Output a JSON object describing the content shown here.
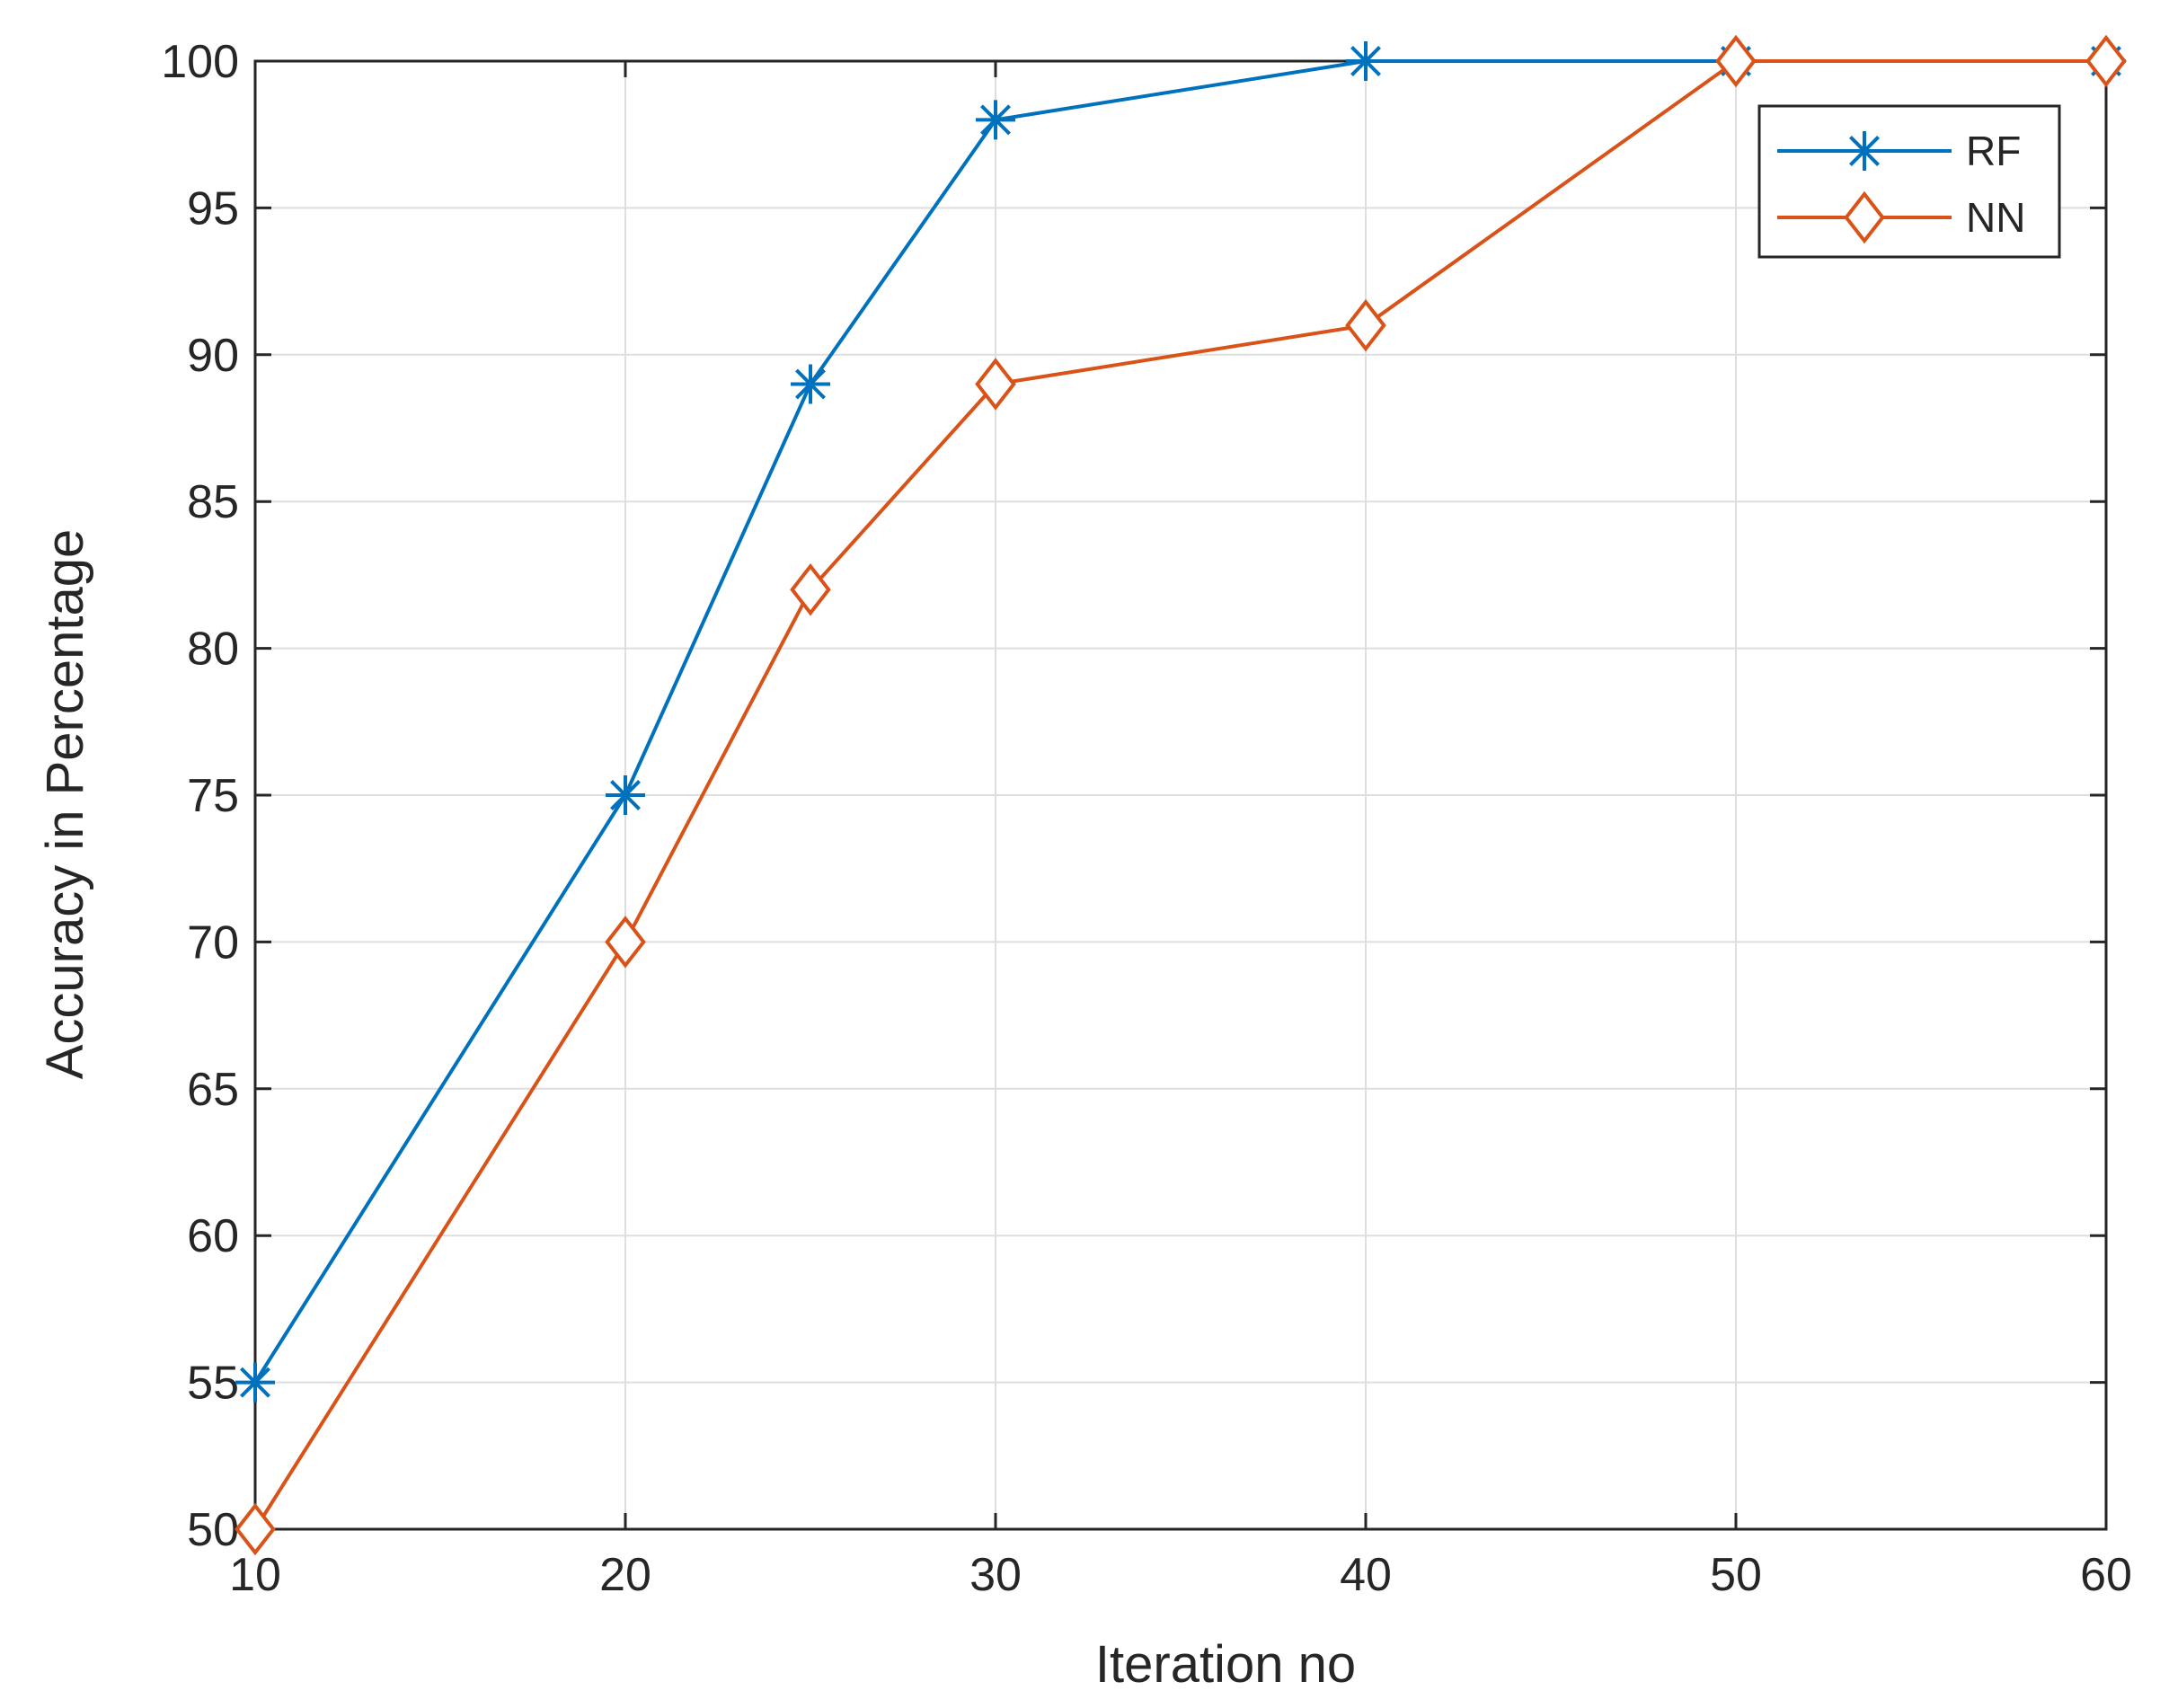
{
  "chart_data": {
    "type": "line",
    "title": "",
    "xlabel": "Iteration no",
    "ylabel": "Accuracy in Percentage",
    "xlim": [
      10,
      60
    ],
    "ylim": [
      50,
      100
    ],
    "x_ticks": [
      10,
      20,
      30,
      40,
      50,
      60
    ],
    "y_ticks": [
      50,
      55,
      60,
      65,
      70,
      75,
      80,
      85,
      90,
      95,
      100
    ],
    "x_tick_labels": [
      "10",
      "20",
      "30",
      "40",
      "50",
      "60"
    ],
    "y_tick_labels": [
      "50",
      "55",
      "60",
      "65",
      "70",
      "75",
      "80",
      "85",
      "90",
      "95",
      "100"
    ],
    "grid": true,
    "legend_position": "top-right",
    "x": [
      10,
      20,
      25,
      30,
      40,
      50,
      60
    ],
    "series": [
      {
        "name": "RF",
        "color": "#0072BD",
        "marker": "asterisk",
        "values": [
          55,
          75,
          89,
          98,
          100,
          100,
          100
        ]
      },
      {
        "name": "NN",
        "color": "#D95319",
        "marker": "diamond",
        "values": [
          50,
          70,
          82,
          89,
          91,
          100,
          100
        ]
      }
    ]
  }
}
